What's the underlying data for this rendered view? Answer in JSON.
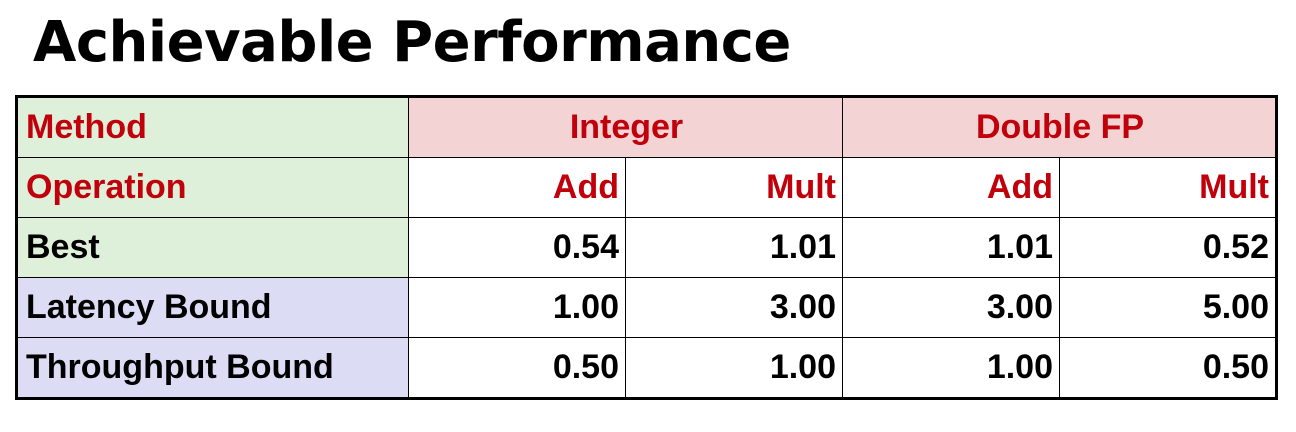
{
  "title": "Achievable Performance",
  "table": {
    "method_label": "Method",
    "groups": [
      "Integer",
      "Double FP"
    ],
    "operation_label": "Operation",
    "operations": [
      "Add",
      "Mult",
      "Add",
      "Mult"
    ],
    "rows": [
      {
        "label": "Best",
        "values": [
          "0.54",
          "1.01",
          "1.01",
          "0.52"
        ]
      },
      {
        "label": "Latency Bound",
        "values": [
          "1.00",
          "3.00",
          "3.00",
          "5.00"
        ]
      },
      {
        "label": "Throughput Bound",
        "values": [
          "0.50",
          "1.00",
          "1.00",
          "0.50"
        ]
      }
    ]
  },
  "colors": {
    "header_text": "#c0000a",
    "label_green": "#dff0da",
    "group_pink": "#f3d3d3",
    "bound_lavender": "#dcdcf5"
  }
}
